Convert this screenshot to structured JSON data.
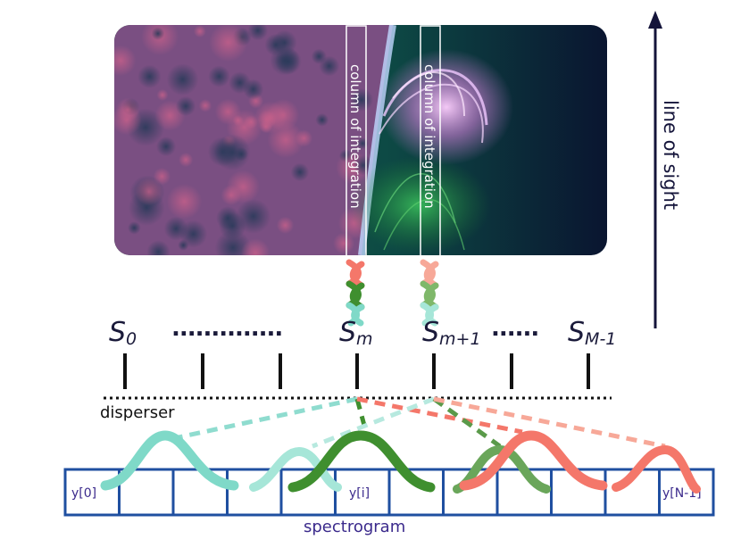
{
  "image": {
    "description_icon": "solar-corona-image"
  },
  "columns": [
    {
      "label": "column of integration"
    },
    {
      "label": "column of integration"
    }
  ],
  "line_of_sight": {
    "label": "line of sight"
  },
  "slits": [
    {
      "base": "S",
      "sub": "0"
    },
    {
      "base": "S",
      "sub": "m"
    },
    {
      "base": "S",
      "sub": "m+1"
    },
    {
      "base": "S",
      "sub": "M-1"
    }
  ],
  "dots": [
    "..............",
    "......"
  ],
  "disperser": {
    "label": "disperser"
  },
  "spectrogram": {
    "label": "spectrogram",
    "cells": [
      "y[0]",
      "",
      "",
      "",
      "",
      "y[i]",
      "",
      "",
      "",
      "",
      "",
      "y[N-1]"
    ]
  },
  "colors": {
    "teal": "#7fd9c8",
    "green": "#3f8f2f",
    "salmon": "#f4776a",
    "pale_salmon": "#f7a898",
    "box": "#1f4fa0",
    "navy": "#14143a",
    "purple_text": "#3b2a8c"
  }
}
